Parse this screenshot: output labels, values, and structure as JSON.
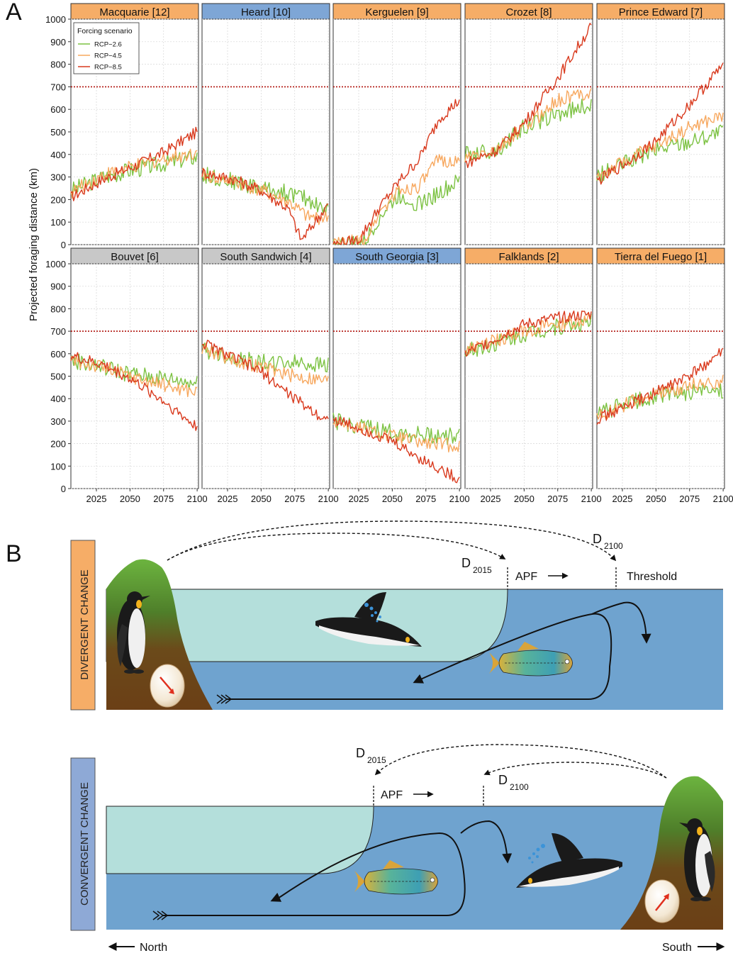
{
  "panel_a_label": "A",
  "panel_b_label": "B",
  "chart_data": {
    "type": "line",
    "ylabel": "Projected foraging distance (km)",
    "ylim": [
      0,
      1000
    ],
    "yticks": [
      0,
      100,
      200,
      300,
      400,
      500,
      600,
      700,
      800,
      900,
      1000
    ],
    "xlim": [
      2006,
      2101
    ],
    "xticks": [
      2025,
      2050,
      2075,
      2100
    ],
    "threshold": 700,
    "grid": true,
    "legend": {
      "title": "Forcing scenario",
      "placement": "top-left",
      "entries": [
        {
          "label": "RCP−2.6",
          "color": "#7cc242"
        },
        {
          "label": "RCP−4.5",
          "color": "#f7a85f"
        },
        {
          "label": "RCP−8.5",
          "color": "#d93a1e"
        }
      ]
    },
    "strip_colors": {
      "orange": "#f6ad67",
      "blue": "#7ea6d6",
      "grey": "#c8c8c8"
    },
    "panels": [
      {
        "title": "Macquarie [12]",
        "strip": "orange",
        "series": [
          {
            "name": "RCP−2.6",
            "x": [
              2006,
              2030,
              2050,
              2075,
              2100
            ],
            "y": [
              240,
              300,
              330,
              360,
              390
            ]
          },
          {
            "name": "RCP−4.5",
            "x": [
              2006,
              2030,
              2050,
              2075,
              2100
            ],
            "y": [
              230,
              310,
              340,
              380,
              410
            ]
          },
          {
            "name": "RCP−8.5",
            "x": [
              2006,
              2030,
              2050,
              2075,
              2100
            ],
            "y": [
              210,
              290,
              340,
              410,
              500
            ]
          }
        ]
      },
      {
        "title": "Heard [10]",
        "strip": "blue",
        "series": [
          {
            "name": "RCP−2.6",
            "x": [
              2006,
              2030,
              2050,
              2070,
              2085,
              2100
            ],
            "y": [
              310,
              280,
              250,
              230,
              200,
              150
            ]
          },
          {
            "name": "RCP−4.5",
            "x": [
              2006,
              2030,
              2050,
              2070,
              2085,
              2100
            ],
            "y": [
              310,
              280,
              240,
              190,
              120,
              120
            ]
          },
          {
            "name": "RCP−8.5",
            "x": [
              2006,
              2030,
              2050,
              2070,
              2080,
              2090,
              2100
            ],
            "y": [
              320,
              290,
              240,
              160,
              20,
              100,
              180
            ]
          }
        ]
      },
      {
        "title": "Kerguelen [9]",
        "strip": "orange",
        "series": [
          {
            "name": "RCP−2.6",
            "x": [
              2006,
              2030,
              2040,
              2055,
              2070,
              2085,
              2100
            ],
            "y": [
              0,
              10,
              120,
              220,
              180,
              230,
              280
            ]
          },
          {
            "name": "RCP−4.5",
            "x": [
              2006,
              2030,
              2040,
              2055,
              2070,
              2085,
              2100
            ],
            "y": [
              0,
              20,
              140,
              240,
              260,
              380,
              360
            ]
          },
          {
            "name": "RCP−8.5",
            "x": [
              2006,
              2025,
              2040,
              2055,
              2070,
              2085,
              2100
            ],
            "y": [
              0,
              20,
              160,
              280,
              380,
              560,
              640
            ]
          }
        ]
      },
      {
        "title": "Crozet [8]",
        "strip": "orange",
        "series": [
          {
            "name": "RCP−2.6",
            "x": [
              2006,
              2030,
              2050,
              2075,
              2100
            ],
            "y": [
              400,
              420,
              520,
              580,
              620
            ]
          },
          {
            "name": "RCP−4.5",
            "x": [
              2006,
              2030,
              2050,
              2075,
              2100
            ],
            "y": [
              380,
              420,
              520,
              640,
              680
            ]
          },
          {
            "name": "RCP−8.5",
            "x": [
              2006,
              2030,
              2050,
              2075,
              2100
            ],
            "y": [
              360,
              420,
              540,
              740,
              970
            ]
          }
        ]
      },
      {
        "title": "Prince Edward [7]",
        "strip": "orange",
        "series": [
          {
            "name": "RCP−2.6",
            "x": [
              2006,
              2030,
              2050,
              2075,
              2100
            ],
            "y": [
              300,
              370,
              420,
              460,
              500
            ]
          },
          {
            "name": "RCP−4.5",
            "x": [
              2006,
              2030,
              2050,
              2075,
              2100
            ],
            "y": [
              300,
              380,
              440,
              520,
              570
            ]
          },
          {
            "name": "RCP−8.5",
            "x": [
              2006,
              2030,
              2050,
              2075,
              2100
            ],
            "y": [
              280,
              370,
              460,
              620,
              800
            ]
          }
        ]
      },
      {
        "title": "Bouvet [6]",
        "strip": "grey",
        "series": [
          {
            "name": "RCP−2.6",
            "x": [
              2006,
              2030,
              2050,
              2075,
              2100
            ],
            "y": [
              570,
              540,
              510,
              490,
              470
            ]
          },
          {
            "name": "RCP−4.5",
            "x": [
              2006,
              2030,
              2050,
              2075,
              2100
            ],
            "y": [
              570,
              540,
              500,
              460,
              430
            ]
          },
          {
            "name": "RCP−8.5",
            "x": [
              2006,
              2030,
              2050,
              2075,
              2100
            ],
            "y": [
              590,
              550,
              490,
              390,
              270
            ]
          }
        ]
      },
      {
        "title": "South Sandwich [4]",
        "strip": "grey",
        "series": [
          {
            "name": "RCP−2.6",
            "x": [
              2006,
              2030,
              2050,
              2075,
              2100
            ],
            "y": [
              620,
              580,
              560,
              560,
              550
            ]
          },
          {
            "name": "RCP−4.5",
            "x": [
              2006,
              2030,
              2050,
              2075,
              2100
            ],
            "y": [
              630,
              570,
              540,
              500,
              480
            ]
          },
          {
            "name": "RCP−8.5",
            "x": [
              2006,
              2030,
              2050,
              2075,
              2100
            ],
            "y": [
              650,
              580,
              520,
              400,
              300
            ]
          }
        ]
      },
      {
        "title": "South Georgia [3]",
        "strip": "blue",
        "series": [
          {
            "name": "RCP−2.6",
            "x": [
              2006,
              2030,
              2050,
              2075,
              2100
            ],
            "y": [
              300,
              270,
              250,
              240,
              230
            ]
          },
          {
            "name": "RCP−4.5",
            "x": [
              2006,
              2030,
              2050,
              2075,
              2100
            ],
            "y": [
              300,
              260,
              230,
              200,
              190
            ]
          },
          {
            "name": "RCP−8.5",
            "x": [
              2006,
              2030,
              2050,
              2075,
              2100
            ],
            "y": [
              310,
              260,
              210,
              120,
              40
            ]
          }
        ]
      },
      {
        "title": "Falklands [2]",
        "strip": "orange",
        "series": [
          {
            "name": "RCP−2.6",
            "x": [
              2006,
              2030,
              2050,
              2075,
              2100
            ],
            "y": [
              610,
              650,
              690,
              720,
              740
            ]
          },
          {
            "name": "RCP−4.5",
            "x": [
              2006,
              2030,
              2050,
              2075,
              2100
            ],
            "y": [
              610,
              660,
              700,
              730,
              750
            ]
          },
          {
            "name": "RCP−8.5",
            "x": [
              2006,
              2030,
              2050,
              2075,
              2100
            ],
            "y": [
              600,
              670,
              730,
              760,
              775
            ]
          }
        ]
      },
      {
        "title": "Tierra del Fuego [1]",
        "strip": "orange",
        "series": [
          {
            "name": "RCP−2.6",
            "x": [
              2006,
              2030,
              2050,
              2075,
              2100
            ],
            "y": [
              330,
              380,
              410,
              430,
              440
            ]
          },
          {
            "name": "RCP−4.5",
            "x": [
              2006,
              2030,
              2050,
              2075,
              2100
            ],
            "y": [
              320,
              380,
              420,
              460,
              480
            ]
          },
          {
            "name": "RCP−8.5",
            "x": [
              2006,
              2030,
              2050,
              2075,
              2100
            ],
            "y": [
              310,
              370,
              430,
              500,
              610
            ]
          }
        ]
      }
    ]
  },
  "diagram": {
    "divergent": {
      "side_label": "DIVERGENT CHANGE",
      "d2015_main": "D",
      "d2015_sub": "2015",
      "d2100_main": "D",
      "d2100_sub": "2100",
      "apf_label": "APF",
      "threshold_label": "Threshold"
    },
    "convergent": {
      "side_label": "CONVERGENT CHANGE",
      "d2015_main": "D",
      "d2015_sub": "2015",
      "d2100_main": "D",
      "d2100_sub": "2100",
      "apf_label": "APF"
    },
    "north_label": "North",
    "south_label": "South",
    "colors": {
      "cold_water": "#b4dfdb",
      "warm_water": "#6fa3cf",
      "divergent_tab": "#f6ad67",
      "convergent_tab": "#8ea9d6",
      "island_top": "#5fa838",
      "island_base": "#6b3f16"
    }
  }
}
